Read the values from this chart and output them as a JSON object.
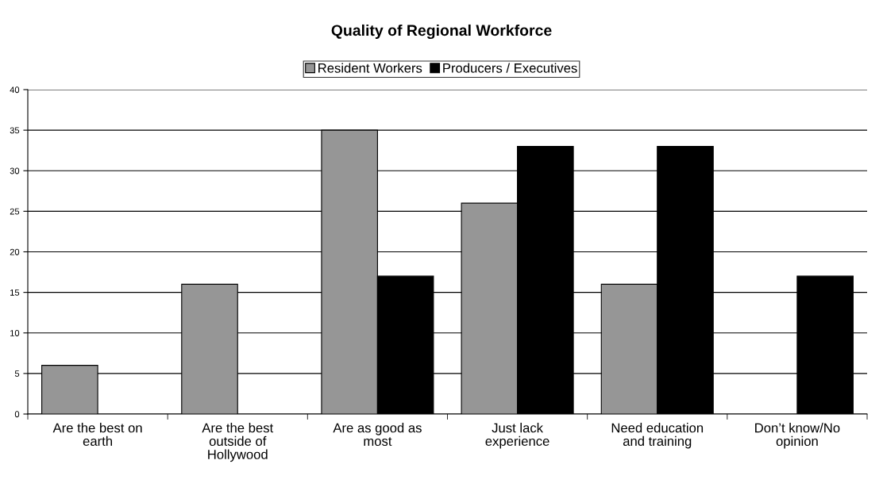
{
  "chart_data": {
    "type": "bar",
    "title": "Quality of Regional Workforce",
    "categories": [
      "Are the best on earth",
      "Are the best outside of Hollywood",
      "Are as good as most",
      "Just lack experience",
      "Need education and training",
      "Don’t know/No opinion"
    ],
    "series": [
      {
        "name": "Resident Workers",
        "color": "#969696",
        "values": [
          6,
          16,
          35,
          26,
          16,
          null
        ]
      },
      {
        "name": "Producers / Executives",
        "color": "#000000",
        "values": [
          null,
          null,
          17,
          33,
          33,
          17
        ]
      }
    ],
    "ylim": [
      0,
      40
    ],
    "yticks": [
      0,
      5,
      10,
      15,
      20,
      25,
      30,
      35,
      40
    ],
    "grid": "y",
    "legend": "top"
  }
}
